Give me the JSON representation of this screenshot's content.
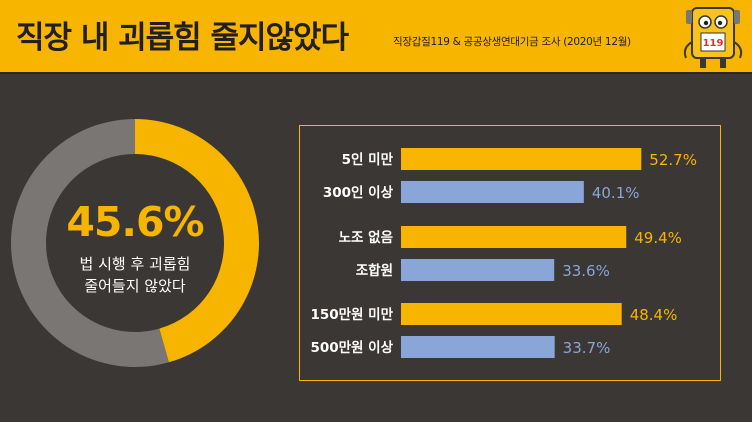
{
  "header": {
    "title": "직장 내 괴롭힘 줄지않았다",
    "source": "직장갑질119 & 공공상생연대기금 조사 (2020년 12월)",
    "mascot_badge": "119"
  },
  "donut": {
    "value_label": "45.6%",
    "caption_line1": "법 시행 후 괴롭힘",
    "caption_line2": "줄어들지 않았다"
  },
  "chart_data": [
    {
      "type": "pie",
      "values": [
        45.6,
        54.4
      ],
      "colors": [
        "#f7b500",
        "#7a7674"
      ]
    },
    {
      "type": "bar",
      "orientation": "horizontal",
      "categories": [
        "5인 미만",
        "300인 이상",
        "노조 없음",
        "조합원",
        "150만원 미만",
        "500만원 이상"
      ],
      "values": [
        52.7,
        40.1,
        49.4,
        33.6,
        48.4,
        33.7
      ],
      "value_labels": [
        "52.7%",
        "40.1%",
        "49.4%",
        "33.6%",
        "48.4%",
        "33.7%"
      ],
      "colors": [
        "#f7b500",
        "#8aa5d8",
        "#f7b500",
        "#8aa5d8",
        "#f7b500",
        "#8aa5d8"
      ],
      "xlim": [
        0,
        100
      ]
    }
  ]
}
